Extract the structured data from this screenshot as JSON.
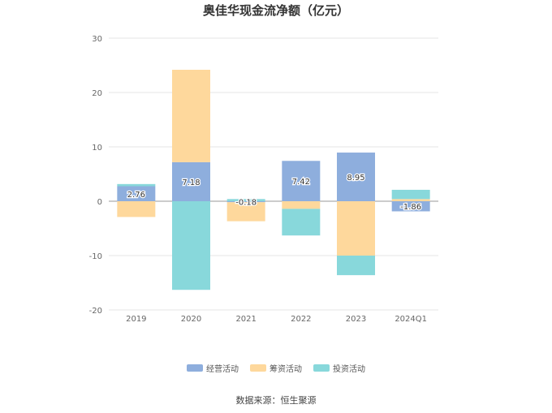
{
  "chart_data": {
    "type": "bar",
    "stacked": true,
    "title": "奥佳华现金流净额（亿元）",
    "categories": [
      "2019",
      "2020",
      "2021",
      "2022",
      "2023",
      "2024Q1"
    ],
    "ylim": [
      -20,
      30
    ],
    "yticks": [
      -20,
      -10,
      0,
      10,
      20,
      30
    ],
    "grid": true,
    "legend_position": "bottom",
    "series": [
      {
        "name": "经营活动",
        "color": "#8eaedd",
        "values": [
          2.76,
          7.18,
          -0.18,
          7.42,
          8.95,
          -1.86
        ],
        "labels": [
          "2.76",
          "7.18",
          "-0.18",
          "7.42",
          "8.95",
          "-1.86"
        ]
      },
      {
        "name": "筹资活动",
        "color": "#fed89c",
        "values": [
          -2.9,
          17.0,
          -3.5,
          -1.4,
          -10.0,
          0.4
        ]
      },
      {
        "name": "投资活动",
        "color": "#88d8db",
        "values": [
          0.4,
          -16.3,
          0.4,
          -4.9,
          -3.6,
          1.7
        ]
      }
    ],
    "source": "数据来源：恒生聚源"
  }
}
